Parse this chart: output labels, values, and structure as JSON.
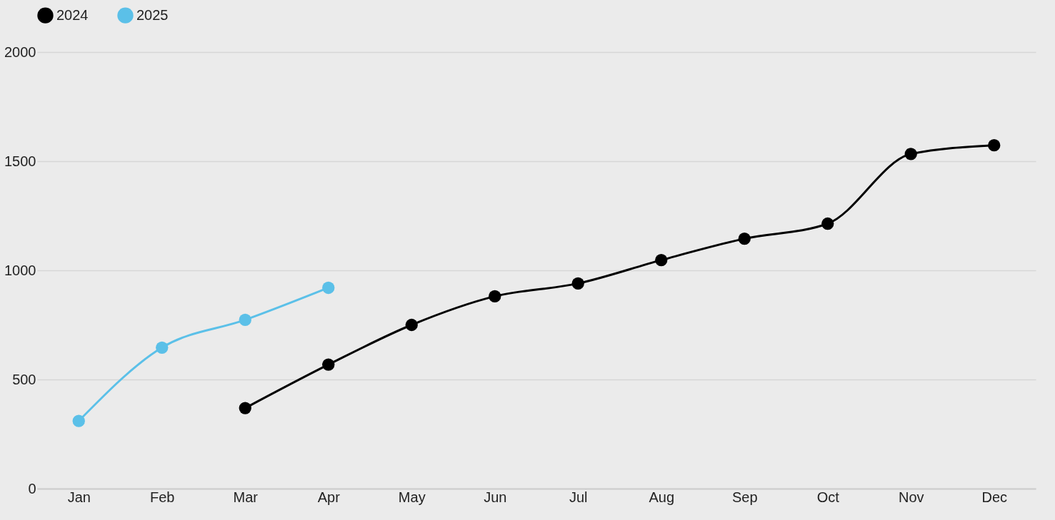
{
  "chart_data": {
    "type": "line",
    "categories": [
      "Jan",
      "Feb",
      "Mar",
      "Apr",
      "May",
      "Jun",
      "Jul",
      "Aug",
      "Sep",
      "Oct",
      "Nov",
      "Dec"
    ],
    "series": [
      {
        "name": "2024",
        "color": "#000000",
        "values": [
          null,
          null,
          369,
          568,
          750,
          881,
          940,
          1047,
          1145,
          1214,
          1533,
          1573
        ]
      },
      {
        "name": "2025",
        "color": "#5bc0e8",
        "values": [
          310,
          646,
          773,
          920,
          null,
          null,
          null,
          null,
          null,
          null,
          null,
          null
        ]
      }
    ],
    "ylim": [
      0,
      2000
    ],
    "yticks": [
      0,
      500,
      1000,
      1500,
      2000
    ],
    "grid": "y",
    "legend": "top",
    "marker": "circle",
    "line_style": "solid"
  }
}
